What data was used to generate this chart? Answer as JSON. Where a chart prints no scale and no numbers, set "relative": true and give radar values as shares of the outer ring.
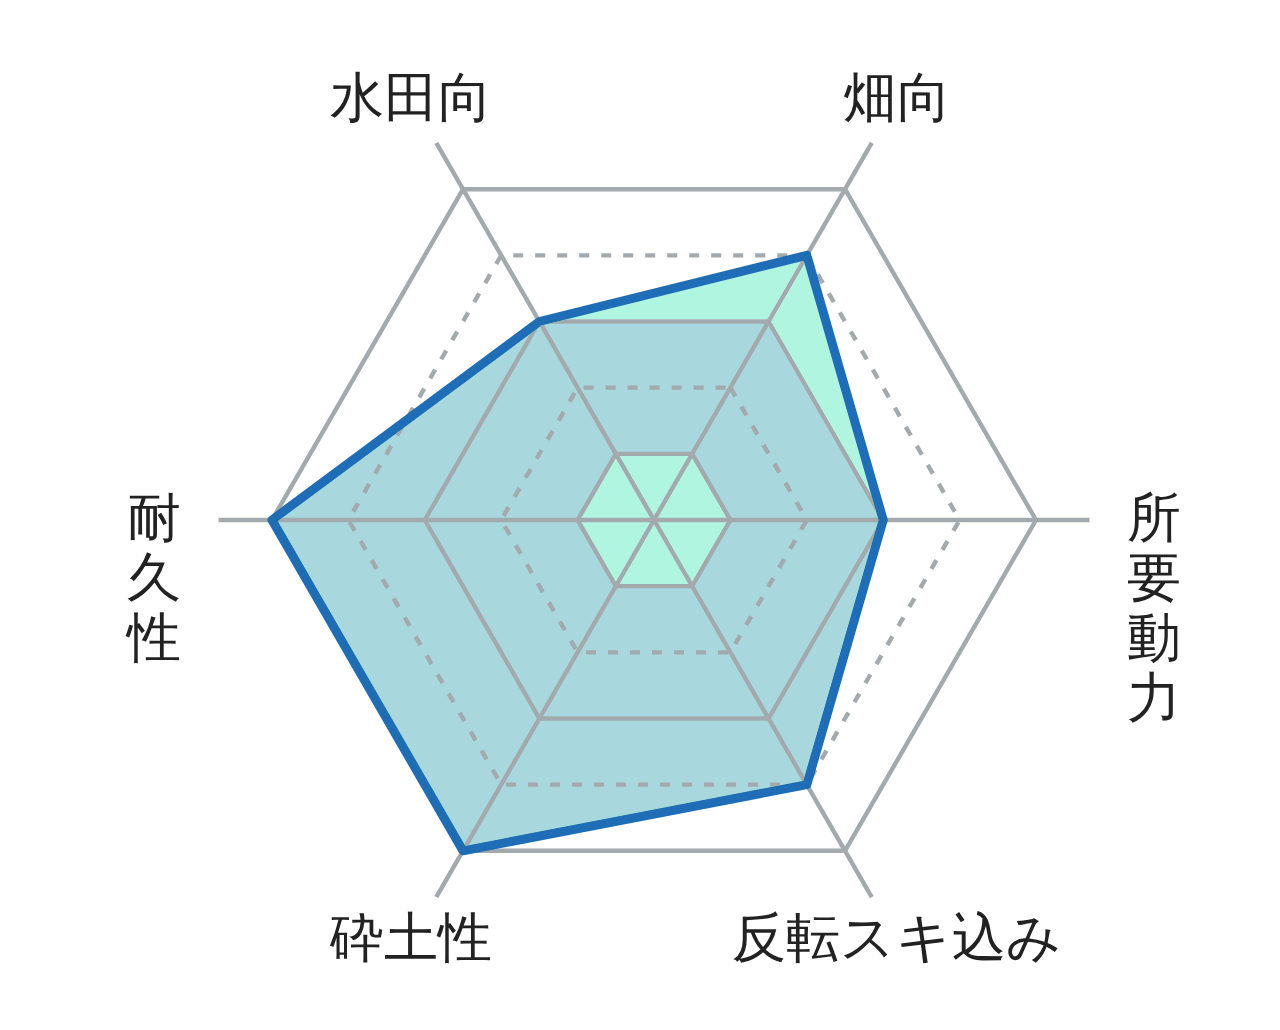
{
  "chart_data": {
    "type": "radar",
    "relative": true,
    "categories": [
      "畑向",
      "所要動力",
      "反転スキ込み",
      "砕土性",
      "耐久性",
      "水田向"
    ],
    "series": [
      {
        "color": "#1f6db6",
        "values": [
          0.8,
          0.6,
          0.8,
          1,
          1,
          0.6
        ]
      },
      {
        "type": "area",
        "color": "#a8d8de",
        "values": [
          0.6,
          0.6,
          0.8,
          1,
          1,
          0.6
        ]
      }
    ],
    "grid": true
  }
}
